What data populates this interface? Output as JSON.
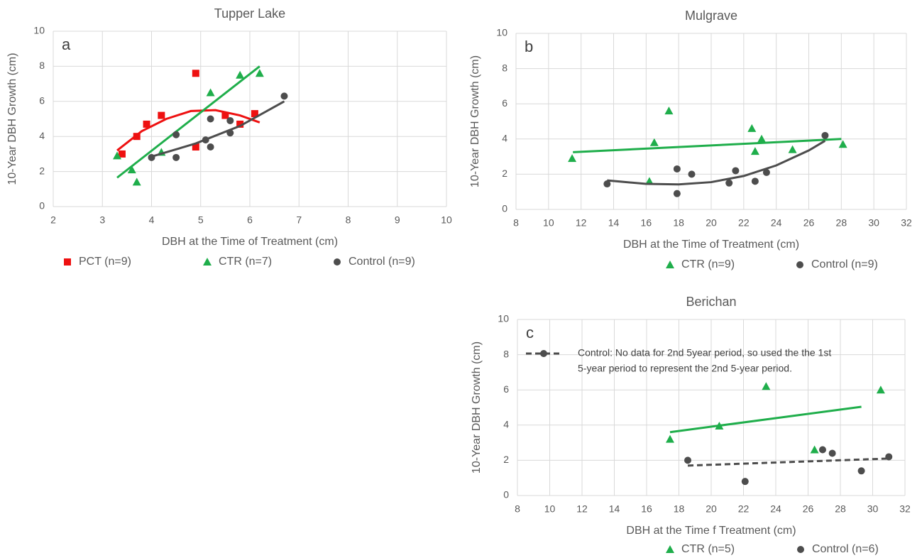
{
  "chart_data": [
    {
      "type": "scatter",
      "title": "Tupper Lake",
      "label": "a",
      "xlabel": "DBH at the Time of Treatment (cm)",
      "ylabel": "10-Year DBH Growth (cm)",
      "xlim": [
        2,
        10
      ],
      "ylim": [
        0,
        10
      ],
      "xticks": [
        2,
        3,
        4,
        5,
        6,
        7,
        8,
        9,
        10
      ],
      "yticks": [
        0,
        2,
        4,
        6,
        8,
        10
      ],
      "grid": true,
      "series": [
        {
          "name": "PCT (n=9)",
          "color": "#ee1111",
          "marker": "square",
          "x": [
            3.4,
            3.7,
            3.9,
            4.2,
            4.9,
            4.9,
            5.5,
            5.8,
            6.1
          ],
          "values": [
            3.0,
            4.0,
            4.7,
            5.2,
            7.6,
            3.4,
            5.2,
            4.7,
            5.3
          ],
          "trend": {
            "x": [
              3.3,
              3.8,
              4.3,
              4.8,
              5.3,
              5.8,
              6.2
            ],
            "values": [
              3.2,
              4.3,
              5.0,
              5.45,
              5.5,
              5.2,
              4.8
            ]
          }
        },
        {
          "name": "CTR (n=7)",
          "color": "#1fae4b",
          "marker": "triangle",
          "x": [
            3.3,
            3.6,
            3.7,
            4.2,
            5.2,
            5.8,
            6.2
          ],
          "values": [
            2.9,
            2.1,
            1.4,
            3.1,
            6.5,
            7.5,
            7.6
          ],
          "trend": {
            "x": [
              3.3,
              6.2
            ],
            "values": [
              1.65,
              8.0
            ]
          }
        },
        {
          "name": "Control (n=9)",
          "color": "#4d4d4d",
          "marker": "circle",
          "x": [
            4.0,
            4.5,
            4.5,
            5.1,
            5.2,
            5.2,
            5.6,
            5.6,
            6.7
          ],
          "values": [
            2.8,
            4.1,
            2.8,
            3.8,
            5.0,
            3.4,
            4.9,
            4.2,
            6.3
          ],
          "trend": {
            "x": [
              4.0,
              4.9,
              5.8,
              6.7
            ],
            "values": [
              2.85,
              3.6,
              4.6,
              6.0
            ]
          }
        }
      ]
    },
    {
      "type": "scatter",
      "title": "Mulgrave",
      "label": "b",
      "xlabel": "DBH at the Time of Treatment (cm)",
      "ylabel": "10-Year DBH Growth (cm)",
      "xlim": [
        8,
        32
      ],
      "ylim": [
        0,
        10
      ],
      "xticks": [
        8,
        10,
        12,
        14,
        16,
        18,
        20,
        22,
        24,
        26,
        28,
        30,
        32
      ],
      "yticks": [
        0,
        2,
        4,
        6,
        8,
        10
      ],
      "grid": true,
      "series": [
        {
          "name": "CTR (n=9)",
          "color": "#1fae4b",
          "marker": "triangle",
          "x": [
            11.45,
            16.5,
            16.2,
            17.4,
            22.5,
            22.7,
            23.1,
            25.0,
            28.1
          ],
          "values": [
            2.9,
            3.8,
            1.6,
            5.6,
            4.6,
            3.3,
            4.0,
            3.4,
            3.7
          ],
          "trend": {
            "x": [
              11.5,
              28
            ],
            "values": [
              3.25,
              4.0
            ]
          }
        },
        {
          "name": "Control (n=9)",
          "color": "#4d4d4d",
          "marker": "circle",
          "x": [
            13.6,
            17.9,
            17.9,
            18.8,
            21.1,
            21.5,
            22.7,
            23.4,
            27.0
          ],
          "values": [
            1.45,
            2.3,
            0.9,
            2.0,
            1.5,
            2.2,
            1.6,
            2.1,
            4.2
          ],
          "trend": {
            "x": [
              13.6,
              16,
              18,
              20,
              22,
              24,
              26,
              27
            ],
            "values": [
              1.65,
              1.45,
              1.42,
              1.55,
              1.9,
              2.5,
              3.35,
              3.9
            ]
          }
        }
      ]
    },
    {
      "type": "scatter",
      "title": "Berichan",
      "label": "c",
      "xlabel": "DBH at the Time f Treatment (cm)",
      "ylabel": "10-Year DBH Growth (cm)",
      "xlim": [
        8,
        32
      ],
      "ylim": [
        0,
        10
      ],
      "xticks": [
        8,
        10,
        12,
        14,
        16,
        18,
        20,
        22,
        24,
        26,
        28,
        30,
        32
      ],
      "yticks": [
        0,
        2,
        4,
        6,
        8,
        10
      ],
      "grid": true,
      "annotation": [
        "Control: No data for 2nd 5year period, so used the the 1st",
        "5-year period to represent  the 2nd 5-year period."
      ],
      "series": [
        {
          "name": "CTR (n=5)",
          "color": "#1fae4b",
          "marker": "triangle",
          "x": [
            17.45,
            20.5,
            23.4,
            26.4,
            30.5
          ],
          "values": [
            3.2,
            3.95,
            6.2,
            2.6,
            6.0
          ],
          "trend": {
            "x": [
              17.45,
              29.3
            ],
            "values": [
              3.6,
              5.04
            ]
          }
        },
        {
          "name": "Control (n=6)",
          "color": "#4d4d4d",
          "marker": "circle",
          "x": [
            18.55,
            22.1,
            26.9,
            27.5,
            29.3,
            31.0
          ],
          "values": [
            2.0,
            0.8,
            2.6,
            2.4,
            1.4,
            2.2
          ],
          "trend": {
            "x": [
              18.55,
              31.0
            ],
            "values": [
              1.7,
              2.1
            ],
            "dashed": true
          }
        }
      ]
    }
  ]
}
